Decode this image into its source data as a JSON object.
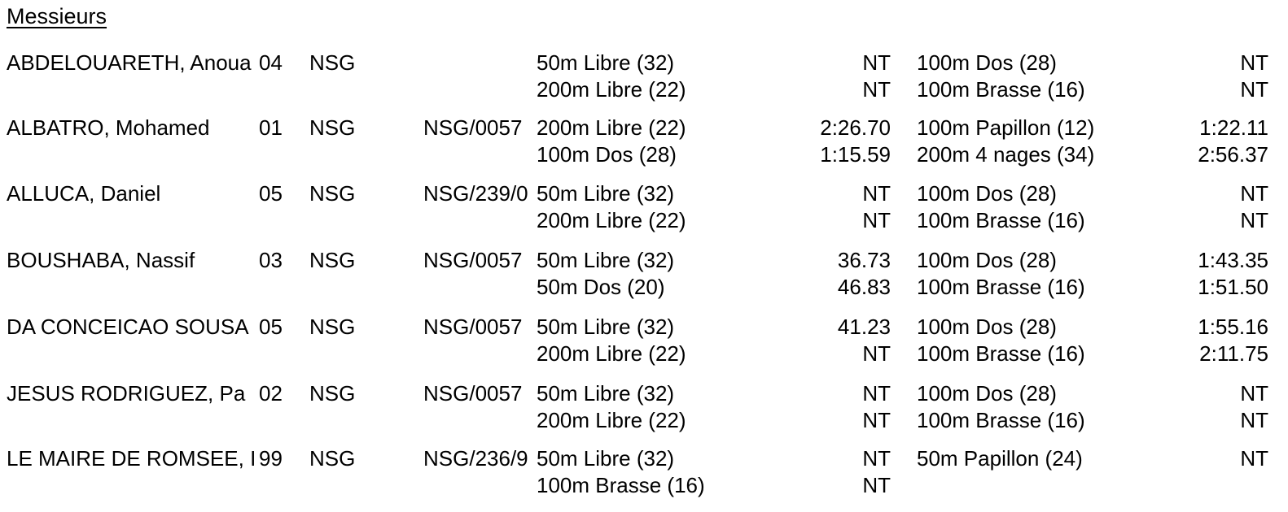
{
  "section_title": "Messieurs",
  "swimmers": [
    {
      "name": "ABDELOUARETH, Anoua",
      "age": "04",
      "club": "NSG",
      "license": "",
      "events": [
        {
          "event": "50m Libre (32)",
          "time": "NT"
        },
        {
          "event": "100m Dos (28)",
          "time": "NT"
        },
        {
          "event": "200m Libre (22)",
          "time": "NT"
        },
        {
          "event": "100m Brasse (16)",
          "time": "NT"
        }
      ]
    },
    {
      "name": "ALBATRO, Mohamed",
      "age": "01",
      "club": "NSG",
      "license": "NSG/0057",
      "events": [
        {
          "event": "200m Libre (22)",
          "time": "2:26.70"
        },
        {
          "event": "100m Papillon (12)",
          "time": "1:22.11"
        },
        {
          "event": "100m Dos (28)",
          "time": "1:15.59"
        },
        {
          "event": "200m 4 nages (34)",
          "time": "2:56.37"
        }
      ]
    },
    {
      "name": "ALLUCA, Daniel",
      "age": "05",
      "club": "NSG",
      "license": "NSG/239/0",
      "events": [
        {
          "event": "50m Libre (32)",
          "time": "NT"
        },
        {
          "event": "100m Dos (28)",
          "time": "NT"
        },
        {
          "event": "200m Libre (22)",
          "time": "NT"
        },
        {
          "event": "100m Brasse (16)",
          "time": "NT"
        }
      ]
    },
    {
      "name": "BOUSHABA, Nassif",
      "age": "03",
      "club": "NSG",
      "license": "NSG/0057",
      "events": [
        {
          "event": "50m Libre (32)",
          "time": "36.73"
        },
        {
          "event": "100m Dos (28)",
          "time": "1:43.35"
        },
        {
          "event": "50m Dos (20)",
          "time": "46.83"
        },
        {
          "event": "100m Brasse (16)",
          "time": "1:51.50"
        }
      ]
    },
    {
      "name": "DA CONCEICAO SOUSA",
      "age": "05",
      "club": "NSG",
      "license": "NSG/0057",
      "events": [
        {
          "event": "50m Libre (32)",
          "time": "41.23"
        },
        {
          "event": "100m Dos (28)",
          "time": "1:55.16"
        },
        {
          "event": "200m Libre (22)",
          "time": "NT"
        },
        {
          "event": "100m Brasse (16)",
          "time": "2:11.75"
        }
      ]
    },
    {
      "name": "JESUS RODRIGUEZ, Pa",
      "age": "02",
      "club": "NSG",
      "license": "NSG/0057",
      "events": [
        {
          "event": "50m Libre (32)",
          "time": "NT"
        },
        {
          "event": "100m Dos (28)",
          "time": "NT"
        },
        {
          "event": "200m Libre (22)",
          "time": "NT"
        },
        {
          "event": "100m Brasse (16)",
          "time": "NT"
        }
      ]
    },
    {
      "name": "LE MAIRE DE ROMSEE, I",
      "age": "99",
      "club": "NSG",
      "license": "NSG/236/9",
      "events": [
        {
          "event": "50m Libre (32)",
          "time": "NT"
        },
        {
          "event": "50m Papillon (24)",
          "time": "NT"
        },
        {
          "event": "100m Brasse (16)",
          "time": "NT"
        },
        {
          "event": "",
          "time": ""
        }
      ]
    }
  ]
}
